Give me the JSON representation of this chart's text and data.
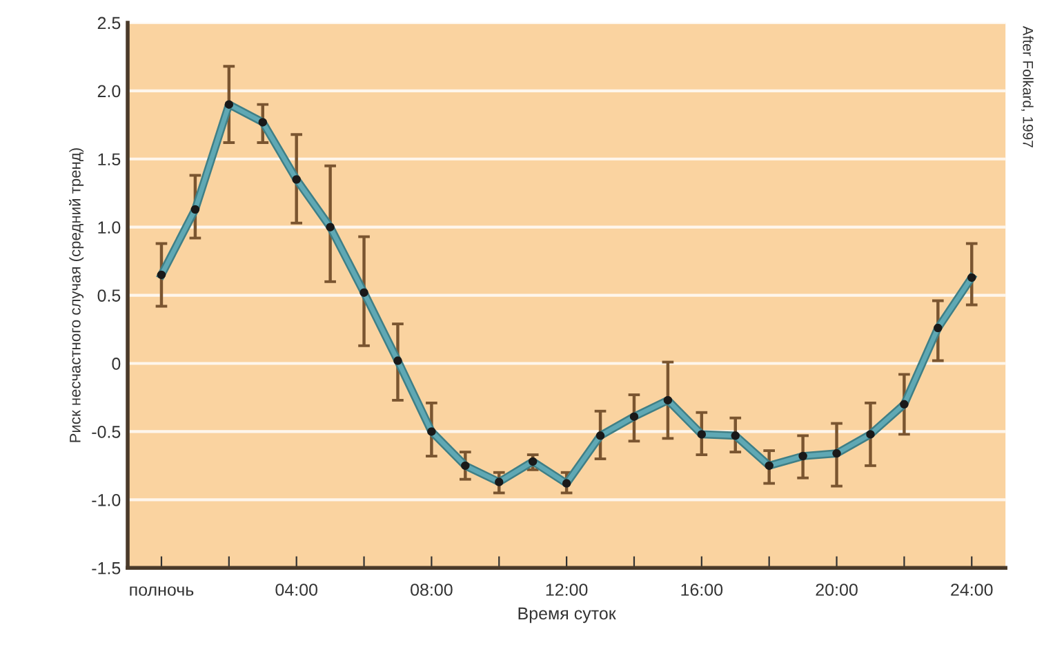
{
  "chart_data": {
    "type": "line",
    "xlabel": "Время суток",
    "ylabel": "Риск несчастного случая (средний тренд)",
    "annotations": [
      "After Folkard, 1997"
    ],
    "x": [
      0,
      1,
      2,
      3,
      4,
      5,
      6,
      7,
      8,
      9,
      10,
      11,
      12,
      13,
      14,
      15,
      16,
      17,
      18,
      19,
      20,
      21,
      22,
      23,
      24
    ],
    "series": [
      {
        "color": "#5fa8b4",
        "values": [
          0.65,
          1.13,
          1.9,
          1.77,
          1.35,
          1.0,
          0.52,
          0.02,
          -0.5,
          -0.75,
          -0.87,
          -0.72,
          -0.88,
          -0.53,
          -0.39,
          -0.27,
          -0.52,
          -0.53,
          -0.75,
          -0.68,
          -0.66,
          -0.52,
          -0.3,
          0.26,
          0.63
        ],
        "errors": [
          [
            0.42,
            0.88
          ],
          [
            0.92,
            1.38
          ],
          [
            1.62,
            2.18
          ],
          [
            1.62,
            1.9
          ],
          [
            1.03,
            1.68
          ],
          [
            0.6,
            1.45
          ],
          [
            0.13,
            0.93
          ],
          [
            -0.27,
            0.29
          ],
          [
            -0.68,
            -0.29
          ],
          [
            -0.85,
            -0.65
          ],
          [
            -0.95,
            -0.8
          ],
          [
            -0.78,
            -0.67
          ],
          [
            -0.95,
            -0.8
          ],
          [
            -0.7,
            -0.35
          ],
          [
            -0.57,
            -0.23
          ],
          [
            -0.55,
            0.01
          ],
          [
            -0.67,
            -0.36
          ],
          [
            -0.65,
            -0.4
          ],
          [
            -0.88,
            -0.64
          ],
          [
            -0.84,
            -0.53
          ],
          [
            -0.9,
            -0.44
          ],
          [
            -0.75,
            -0.29
          ],
          [
            -0.52,
            -0.08
          ],
          [
            0.02,
            0.46
          ],
          [
            0.43,
            0.88
          ]
        ]
      }
    ],
    "marker": "circle",
    "line_style": "solid",
    "xlim": [
      -1,
      25
    ],
    "xticks": [
      {
        "value": 0,
        "label": "полночь"
      },
      {
        "value": 2,
        "label": null
      },
      {
        "value": 4,
        "label": "04:00"
      },
      {
        "value": 6,
        "label": null
      },
      {
        "value": 8,
        "label": "08:00"
      },
      {
        "value": 10,
        "label": null
      },
      {
        "value": 12,
        "label": "12:00"
      },
      {
        "value": 14,
        "label": null
      },
      {
        "value": 16,
        "label": "16:00"
      },
      {
        "value": 18,
        "label": null
      },
      {
        "value": 20,
        "label": "20:00"
      },
      {
        "value": 22,
        "label": null
      },
      {
        "value": 24,
        "label": "24:00"
      }
    ],
    "ylim": [
      -1.5,
      2.5
    ],
    "yticks": [
      {
        "value": -1.5,
        "label": "-1.5"
      },
      {
        "value": -1,
        "label": "-1.0"
      },
      {
        "value": -0.5,
        "label": "-0.5"
      },
      0,
      {
        "value": 0.5,
        "label": "0.5"
      },
      {
        "value": 1,
        "label": "1.0"
      },
      {
        "value": 1.5,
        "label": "1.5"
      },
      {
        "value": 2,
        "label": "2.0"
      },
      {
        "value": 2.5,
        "label": "2.5"
      }
    ],
    "grid": "y",
    "legend": false
  }
}
